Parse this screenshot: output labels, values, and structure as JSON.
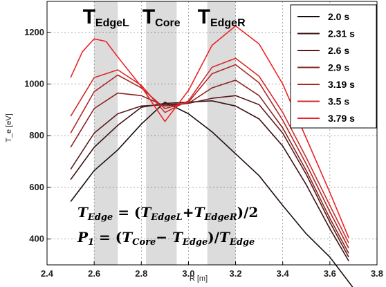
{
  "chart_data": {
    "type": "line",
    "xlabel": "R [m]",
    "ylabel": "T_e [eV]",
    "xlim": [
      2.4,
      3.8
    ],
    "ylim": [
      300,
      1320
    ],
    "x_ticks": [
      "2.4",
      "2.6",
      "2.8",
      "3.0",
      "3.2",
      "3.4",
      "3.6",
      "3.8"
    ],
    "y_ticks": [
      "400",
      "600",
      "800",
      "1000",
      "1200"
    ],
    "grid": true,
    "legend_position": "top-right",
    "bands": [
      {
        "label_main": "T",
        "label_sub": "EdgeL",
        "x_range": [
          2.6,
          2.7
        ]
      },
      {
        "label_main": "T",
        "label_sub": "Core",
        "x_range": [
          2.82,
          2.95
        ]
      },
      {
        "label_main": "T",
        "label_sub": "EdgeR",
        "x_range": [
          3.08,
          3.2
        ]
      }
    ],
    "annotations": {
      "line1": {
        "lhs_main": "T",
        "lhs_sub": "Edge",
        "eq": " = (",
        "a_main": "T",
        "a_sub": "EdgeL",
        "plus": "+",
        "b_main": "T",
        "b_sub": "EdgeR",
        "tail": ")/2"
      },
      "line2": {
        "lhs_main": "P",
        "lhs_sub": "1",
        "eq": " = (",
        "a_main": "T",
        "a_sub": "Core",
        "minus": "− ",
        "b_main": "T",
        "b_sub": "Edge",
        "mid": ")/",
        "c_main": "T",
        "c_sub": "Edge"
      }
    },
    "series": [
      {
        "name": "2.0 s",
        "color": "#1a0d0d",
        "x": [
          2.5,
          2.6,
          2.7,
          2.8,
          2.9,
          3.0,
          3.1,
          3.2,
          3.3,
          3.4,
          3.5,
          3.6,
          3.7
        ],
        "y": [
          545,
          665,
          745,
          845,
          930,
          885,
          815,
          730,
          645,
          530,
          420,
          330,
          210
        ]
      },
      {
        "name": "2.31 s",
        "color": "#3a1212",
        "x": [
          2.5,
          2.6,
          2.7,
          2.8,
          2.9,
          3.0,
          3.1,
          3.2,
          3.3,
          3.4,
          3.5,
          3.6,
          3.68
        ],
        "y": [
          630,
          755,
          840,
          910,
          925,
          930,
          935,
          915,
          865,
          760,
          610,
          440,
          315
        ]
      },
      {
        "name": "2.6 s",
        "color": "#5c1a1a",
        "x": [
          2.5,
          2.6,
          2.7,
          2.8,
          2.9,
          3.0,
          3.1,
          3.2,
          3.3,
          3.4,
          3.5,
          3.6,
          3.68
        ],
        "y": [
          670,
          810,
          885,
          915,
          920,
          925,
          945,
          955,
          920,
          810,
          650,
          465,
          330
        ]
      },
      {
        "name": "2.9 s",
        "color": "#8a2222",
        "x": [
          2.5,
          2.6,
          2.7,
          2.8,
          2.9,
          3.0,
          3.1,
          3.2,
          3.3,
          3.4,
          3.5,
          3.6,
          3.68
        ],
        "y": [
          755,
          905,
          965,
          955,
          915,
          925,
          985,
          1015,
          955,
          830,
          665,
          480,
          345
        ]
      },
      {
        "name": "3.19 s",
        "color": "#b02626",
        "x": [
          2.5,
          2.6,
          2.7,
          2.8,
          2.9,
          3.0,
          3.1,
          3.2,
          3.3,
          3.4,
          3.5,
          3.6,
          3.68
        ],
        "y": [
          810,
          970,
          1035,
          985,
          905,
          930,
          1040,
          1075,
          1005,
          860,
          690,
          505,
          365
        ]
      },
      {
        "name": "3.5 s",
        "color": "#d42a2a",
        "x": [
          2.5,
          2.6,
          2.7,
          2.8,
          2.9,
          3.0,
          3.1,
          3.2,
          3.3,
          3.4,
          3.5,
          3.6,
          3.68
        ],
        "y": [
          875,
          1025,
          1055,
          995,
          890,
          935,
          1065,
          1100,
          1030,
          890,
          715,
          530,
          385
        ]
      },
      {
        "name": "3.79 s",
        "color": "#ee2222",
        "x": [
          2.5,
          2.55,
          2.6,
          2.65,
          2.7,
          2.8,
          2.9,
          3.0,
          3.1,
          3.2,
          3.3,
          3.4,
          3.5,
          3.6,
          3.68
        ],
        "y": [
          1025,
          1125,
          1175,
          1165,
          1105,
          990,
          855,
          975,
          1150,
          1225,
          1155,
          1000,
          790,
          580,
          405
        ]
      }
    ]
  }
}
